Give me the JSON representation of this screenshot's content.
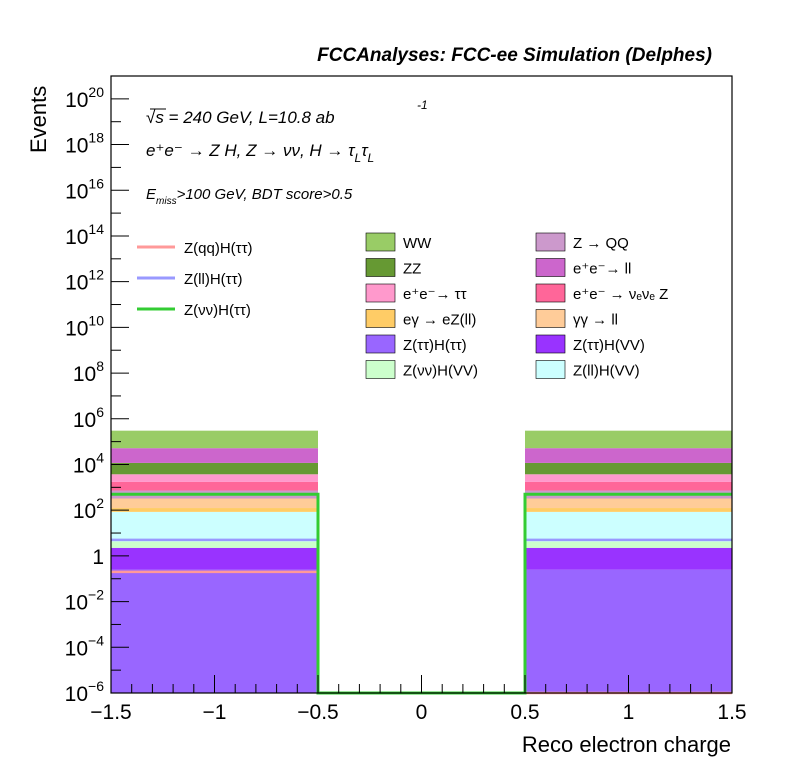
{
  "chart_data": {
    "type": "bar",
    "title": "FCCAnalyses: FCC-ee Simulation (Delphes)",
    "xlabel": "Reco electron charge",
    "ylabel": "Events",
    "xlim": [
      -1.5,
      1.5
    ],
    "ylim": [
      1e-06,
      1e+21
    ],
    "yscale": "log",
    "x_ticks": [
      "−1.5",
      "−1",
      "−0.5",
      "0",
      "0.5",
      "1",
      "1.5"
    ],
    "y_ticks": [
      {
        "base": "10",
        "exp": "20"
      },
      {
        "base": "10",
        "exp": "18"
      },
      {
        "base": "10",
        "exp": "16"
      },
      {
        "base": "10",
        "exp": "14"
      },
      {
        "base": "10",
        "exp": "12"
      },
      {
        "base": "10",
        "exp": "10"
      },
      {
        "base": "10",
        "exp": "8"
      },
      {
        "base": "10",
        "exp": "6"
      },
      {
        "base": "10",
        "exp": "4"
      },
      {
        "base": "10",
        "exp": "2"
      },
      {
        "base": "1",
        "exp": ""
      },
      {
        "base": "10",
        "exp": "−2"
      },
      {
        "base": "10",
        "exp": "−4"
      },
      {
        "base": "10",
        "exp": "−6"
      }
    ],
    "annotations": {
      "line1": "√s = 240 GeV, L=10.8 ab",
      "line1_sup": "-1",
      "line2": "e⁺e⁻ → Z H, Z → νν, H → τ",
      "line2_sub1": "L",
      "line2_mid": "τ",
      "line2_sub2": "L",
      "line3_pre": "E",
      "line3_sub": "miss",
      "line3_post": ">100 GeV, BDT score>0.5"
    },
    "bins": [
      [
        -1.5,
        -0.5
      ],
      [
        -0.5,
        0.5
      ],
      [
        0.5,
        1.5
      ]
    ],
    "stack": [
      {
        "name": "Z(ττ)H(ττ)",
        "color": "#9966ff",
        "values": [
          0.25,
          0,
          0.25
        ]
      },
      {
        "name": "Z(ττ)H(VV)",
        "color": "#9933ff",
        "values": [
          2.0,
          0,
          2.0
        ]
      },
      {
        "name": "Z(νν)H(VV)",
        "color": "#ccffcc",
        "values": [
          2.0,
          0,
          2.0
        ]
      },
      {
        "name": "Z(ll)H(VV)",
        "color": "#ccffff",
        "values": [
          80,
          0,
          80
        ]
      },
      {
        "name": "eγ → eZ(ll)",
        "color": "#ffcc66",
        "values": [
          40,
          0,
          40
        ]
      },
      {
        "name": "γγ → ll",
        "color": "#ffcc99",
        "values": [
          200,
          0,
          200
        ]
      },
      {
        "name": "Z → QQ",
        "color": "#cc99cc",
        "values": [
          400,
          0,
          400
        ]
      },
      {
        "name": "e⁺e⁻ → νₑνₑ Z",
        "color": "#ff6699",
        "values": [
          1000,
          0,
          1000
        ]
      },
      {
        "name": "e⁺e⁻→ ττ",
        "color": "#ff99cc",
        "values": [
          2000,
          0,
          2000
        ]
      },
      {
        "name": "ZZ",
        "color": "#669933",
        "values": [
          8000,
          0,
          8000
        ]
      },
      {
        "name": "e⁺e⁻→ ll",
        "color": "#cc66cc",
        "values": [
          40000,
          0,
          40000
        ]
      },
      {
        "name": "WW",
        "color": "#99cc66",
        "values": [
          250000,
          0,
          250000
        ]
      }
    ],
    "signals": [
      {
        "name": "Z(qq)H(ττ)",
        "color": "#ff9999",
        "values": [
          0.2,
          1e-06,
          1e-06
        ]
      },
      {
        "name": "Z(ll)H(ττ)",
        "color": "#9999ff",
        "values": [
          5.0,
          0,
          5.0
        ]
      },
      {
        "name": "Z(νν)H(ττ)",
        "color": "#33cc33",
        "values": [
          500,
          1e-06,
          500
        ]
      }
    ],
    "legend": {
      "signals": [
        "Z(qq)H(ττ)",
        "Z(ll)H(ττ)",
        "Z(νν)H(ττ)"
      ],
      "col1": [
        "WW",
        "ZZ",
        "e⁺e⁻→ ττ",
        "eγ → eZ(ll)",
        "Z(ττ)H(ττ)",
        "Z(νν)H(VV)"
      ],
      "col2": [
        "Z → QQ",
        "e⁺e⁻→ ll",
        "e⁺e⁻ → νₑνₑ Z",
        "γγ → ll",
        "Z(ττ)H(VV)",
        "Z(ll)H(VV)"
      ]
    }
  }
}
